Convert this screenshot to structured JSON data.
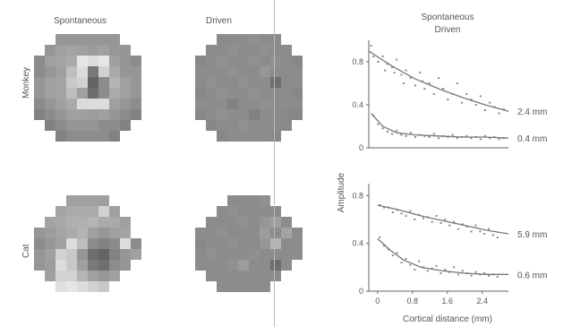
{
  "headers": {
    "col1": "Spontaneous",
    "col2": "Driven",
    "row1": "Monkey",
    "row2": "Cat"
  },
  "maps": {
    "monkey_spontaneous": [
      [
        0,
        0,
        0.55,
        0.55,
        0.55,
        0.55,
        0.55,
        0.55,
        0,
        0
      ],
      [
        0,
        0.55,
        0.6,
        0.62,
        0.6,
        0.58,
        0.6,
        0.55,
        0.55,
        0
      ],
      [
        0.5,
        0.6,
        0.62,
        0.65,
        0.95,
        0.9,
        0.95,
        0.6,
        0.55,
        0.5
      ],
      [
        0.5,
        0.55,
        0.6,
        0.75,
        0.9,
        0.4,
        0.85,
        0.65,
        0.55,
        0.55
      ],
      [
        0.55,
        0.6,
        0.62,
        0.8,
        0.85,
        0.3,
        0.5,
        0.7,
        0.6,
        0.55
      ],
      [
        0.55,
        0.6,
        0.62,
        0.75,
        0.6,
        0.35,
        0.5,
        0.65,
        0.6,
        0.55
      ],
      [
        0.5,
        0.55,
        0.6,
        0.65,
        0.9,
        0.9,
        0.9,
        0.6,
        0.55,
        0.5
      ],
      [
        0.45,
        0.5,
        0.55,
        0.6,
        0.6,
        0.58,
        0.6,
        0.55,
        0.5,
        0.45
      ],
      [
        0,
        0.45,
        0.5,
        0.55,
        0.55,
        0.55,
        0.5,
        0.5,
        0.45,
        0
      ],
      [
        0,
        0,
        0.45,
        0.5,
        0.5,
        0.5,
        0.5,
        0.45,
        0,
        0
      ]
    ],
    "monkey_driven": [
      [
        0,
        0,
        0.5,
        0.5,
        0.5,
        0.52,
        0.5,
        0.5,
        0,
        0
      ],
      [
        0,
        0.5,
        0.5,
        0.52,
        0.5,
        0.5,
        0.52,
        0.5,
        0.5,
        0
      ],
      [
        0.48,
        0.5,
        0.52,
        0.5,
        0.5,
        0.52,
        0.5,
        0.52,
        0.5,
        0.48
      ],
      [
        0.5,
        0.5,
        0.5,
        0.52,
        0.5,
        0.5,
        0.55,
        0.5,
        0.5,
        0.5
      ],
      [
        0.5,
        0.52,
        0.5,
        0.5,
        0.52,
        0.5,
        0.5,
        0.35,
        0.5,
        0.5
      ],
      [
        0.48,
        0.5,
        0.52,
        0.5,
        0.5,
        0.52,
        0.5,
        0.5,
        0.5,
        0.48
      ],
      [
        0.5,
        0.5,
        0.5,
        0.45,
        0.5,
        0.5,
        0.52,
        0.5,
        0.5,
        0.5
      ],
      [
        0.48,
        0.5,
        0.52,
        0.5,
        0.5,
        0.45,
        0.5,
        0.5,
        0.48,
        0.48
      ],
      [
        0,
        0.48,
        0.5,
        0.5,
        0.52,
        0.5,
        0.5,
        0.5,
        0.48,
        0
      ],
      [
        0,
        0,
        0.48,
        0.5,
        0.5,
        0.5,
        0.5,
        0.48,
        0,
        0
      ]
    ],
    "cat_spontaneous": [
      [
        0,
        0,
        0,
        0.6,
        0.6,
        0.6,
        0.6,
        0,
        0,
        0
      ],
      [
        0,
        0,
        0.62,
        0.65,
        0.65,
        0.65,
        0.85,
        0.6,
        0,
        0
      ],
      [
        0,
        0.62,
        0.65,
        0.68,
        0.68,
        0.7,
        0.65,
        0.65,
        0.6,
        0
      ],
      [
        0.55,
        0.58,
        0.62,
        0.65,
        0.7,
        0.6,
        0.55,
        0.6,
        0.62,
        0
      ],
      [
        0.5,
        0.55,
        0.6,
        0.9,
        0.75,
        0.5,
        0.45,
        0.5,
        0.9,
        0.5
      ],
      [
        0.55,
        0.6,
        0.85,
        0.8,
        0.55,
        0.35,
        0.3,
        0.45,
        0.55,
        0.6
      ],
      [
        0.55,
        0.58,
        0.9,
        0.8,
        0.6,
        0.4,
        0.35,
        0.5,
        0.55,
        0
      ],
      [
        0,
        0.6,
        0.85,
        0.85,
        0.7,
        0.6,
        0.55,
        0.6,
        0,
        0
      ],
      [
        0,
        0,
        0.92,
        0.95,
        0.9,
        0.85,
        0.8,
        0,
        0,
        0
      ],
      [
        0,
        0,
        0,
        0,
        0,
        0,
        0,
        0,
        0,
        0
      ]
    ],
    "cat_driven": [
      [
        0,
        0,
        0,
        0.5,
        0.5,
        0.5,
        0.52,
        0,
        0,
        0
      ],
      [
        0,
        0,
        0.5,
        0.52,
        0.5,
        0.5,
        0.5,
        0.5,
        0,
        0
      ],
      [
        0,
        0.5,
        0.5,
        0.5,
        0.52,
        0.5,
        0.55,
        0.6,
        0.5,
        0
      ],
      [
        0.5,
        0.5,
        0.52,
        0.5,
        0.5,
        0.5,
        0.58,
        0.5,
        0.62,
        0.5
      ],
      [
        0.48,
        0.5,
        0.5,
        0.52,
        0.5,
        0.5,
        0.55,
        0.7,
        0.5,
        0.5
      ],
      [
        0.5,
        0.52,
        0.5,
        0.5,
        0.5,
        0.52,
        0.5,
        0.5,
        0.5,
        0.5
      ],
      [
        0.5,
        0.5,
        0.5,
        0.52,
        0.58,
        0.5,
        0.5,
        0.35,
        0.5,
        0
      ],
      [
        0,
        0.5,
        0.5,
        0.5,
        0.5,
        0.5,
        0.5,
        0.5,
        0,
        0
      ],
      [
        0,
        0,
        0.5,
        0.5,
        0.5,
        0.5,
        0.5,
        0,
        0,
        0
      ],
      [
        0,
        0,
        0,
        0,
        0,
        0,
        0,
        0,
        0,
        0
      ]
    ]
  },
  "chart_data": [
    {
      "type": "scatter",
      "panel": "monkey",
      "title": "Spontaneous",
      "subtitle": "Driven",
      "ylabel": "Amplitude",
      "xlim": [
        0,
        3
      ],
      "ylim": [
        0,
        1
      ],
      "yticks": [
        "0",
        "0.4",
        "0.8"
      ],
      "series": [
        {
          "annotation": "2.4 mm",
          "fit": [
            [
              0,
              0.9
            ],
            [
              0.5,
              0.76
            ],
            [
              1,
              0.64
            ],
            [
              1.5,
              0.55
            ],
            [
              2,
              0.47
            ],
            [
              2.5,
              0.4
            ],
            [
              3,
              0.34
            ]
          ],
          "x": [
            0.05,
            0.1,
            0.2,
            0.3,
            0.35,
            0.4,
            0.5,
            0.55,
            0.6,
            0.7,
            0.75,
            0.8,
            0.9,
            1.0,
            1.1,
            1.15,
            1.2,
            1.3,
            1.4,
            1.5,
            1.6,
            1.7,
            1.8,
            1.9,
            2.0,
            2.1,
            2.2,
            2.3,
            2.4,
            2.5,
            2.6,
            2.7,
            2.8,
            2.9
          ],
          "y": [
            0.95,
            0.85,
            0.8,
            0.85,
            0.72,
            0.78,
            0.75,
            0.7,
            0.82,
            0.68,
            0.6,
            0.72,
            0.65,
            0.58,
            0.7,
            0.62,
            0.55,
            0.6,
            0.5,
            0.65,
            0.55,
            0.45,
            0.5,
            0.6,
            0.42,
            0.5,
            0.45,
            0.4,
            0.48,
            0.35,
            0.42,
            0.38,
            0.32,
            0.36
          ]
        },
        {
          "annotation": "0.4 mm",
          "fit": [
            [
              0.05,
              0.32
            ],
            [
              0.3,
              0.2
            ],
            [
              0.6,
              0.14
            ],
            [
              1,
              0.12
            ],
            [
              1.5,
              0.11
            ],
            [
              2,
              0.1
            ],
            [
              2.5,
              0.1
            ],
            [
              3,
              0.09
            ]
          ],
          "x": [
            0.1,
            0.2,
            0.3,
            0.4,
            0.5,
            0.6,
            0.7,
            0.8,
            0.9,
            1.0,
            1.1,
            1.2,
            1.3,
            1.4,
            1.5,
            1.6,
            1.7,
            1.8,
            1.9,
            2.0,
            2.1,
            2.2,
            2.3,
            2.4,
            2.5,
            2.6,
            2.7,
            2.8,
            2.9
          ],
          "y": [
            0.3,
            0.22,
            0.18,
            0.15,
            0.13,
            0.16,
            0.12,
            0.11,
            0.14,
            0.1,
            0.12,
            0.11,
            0.1,
            0.13,
            0.09,
            0.11,
            0.1,
            0.12,
            0.09,
            0.1,
            0.11,
            0.09,
            0.1,
            0.08,
            0.11,
            0.09,
            0.1,
            0.08,
            0.09
          ]
        }
      ]
    },
    {
      "type": "scatter",
      "panel": "cat",
      "xlabel": "Cortical distance (mm)",
      "xlim": [
        -0.2,
        3
      ],
      "ylim": [
        0,
        0.9
      ],
      "xticks": [
        "0",
        "0.8",
        "1.6",
        "2.4"
      ],
      "xtick_values": [
        0,
        0.8,
        1.6,
        2.4
      ],
      "yticks": [
        "0",
        "0.4",
        "0.8"
      ],
      "series": [
        {
          "annotation": "5.9 mm",
          "fit": [
            [
              0,
              0.72
            ],
            [
              0.5,
              0.68
            ],
            [
              1,
              0.63
            ],
            [
              1.5,
              0.59
            ],
            [
              2,
              0.55
            ],
            [
              2.5,
              0.51
            ],
            [
              3,
              0.48
            ]
          ],
          "x": [
            0.05,
            0.15,
            0.25,
            0.35,
            0.45,
            0.55,
            0.65,
            0.75,
            0.85,
            0.95,
            1.05,
            1.15,
            1.25,
            1.35,
            1.45,
            1.55,
            1.65,
            1.75,
            1.85,
            1.95,
            2.05,
            2.15,
            2.25,
            2.35,
            2.45,
            2.55,
            2.65,
            2.75
          ],
          "y": [
            0.72,
            0.7,
            0.7,
            0.66,
            0.68,
            0.65,
            0.63,
            0.67,
            0.6,
            0.64,
            0.61,
            0.62,
            0.58,
            0.63,
            0.57,
            0.6,
            0.55,
            0.58,
            0.52,
            0.56,
            0.54,
            0.5,
            0.55,
            0.5,
            0.48,
            0.52,
            0.47,
            0.45
          ]
        },
        {
          "annotation": "0.6 mm",
          "fit": [
            [
              0,
              0.44
            ],
            [
              0.3,
              0.34
            ],
            [
              0.6,
              0.26
            ],
            [
              1,
              0.2
            ],
            [
              1.5,
              0.17
            ],
            [
              2,
              0.15
            ],
            [
              2.5,
              0.14
            ],
            [
              3,
              0.14
            ]
          ],
          "x": [
            0.05,
            0.15,
            0.25,
            0.35,
            0.45,
            0.55,
            0.65,
            0.75,
            0.85,
            0.95,
            1.05,
            1.15,
            1.25,
            1.35,
            1.45,
            1.55,
            1.65,
            1.75,
            1.85,
            1.95,
            2.05,
            2.15,
            2.25,
            2.35,
            2.45,
            2.55,
            2.65,
            2.75
          ],
          "y": [
            0.45,
            0.38,
            0.35,
            0.3,
            0.32,
            0.24,
            0.27,
            0.22,
            0.18,
            0.25,
            0.2,
            0.17,
            0.19,
            0.21,
            0.15,
            0.18,
            0.16,
            0.2,
            0.14,
            0.17,
            0.15,
            0.13,
            0.16,
            0.14,
            0.15,
            0.13,
            0.14,
            0.12
          ]
        }
      ]
    }
  ]
}
